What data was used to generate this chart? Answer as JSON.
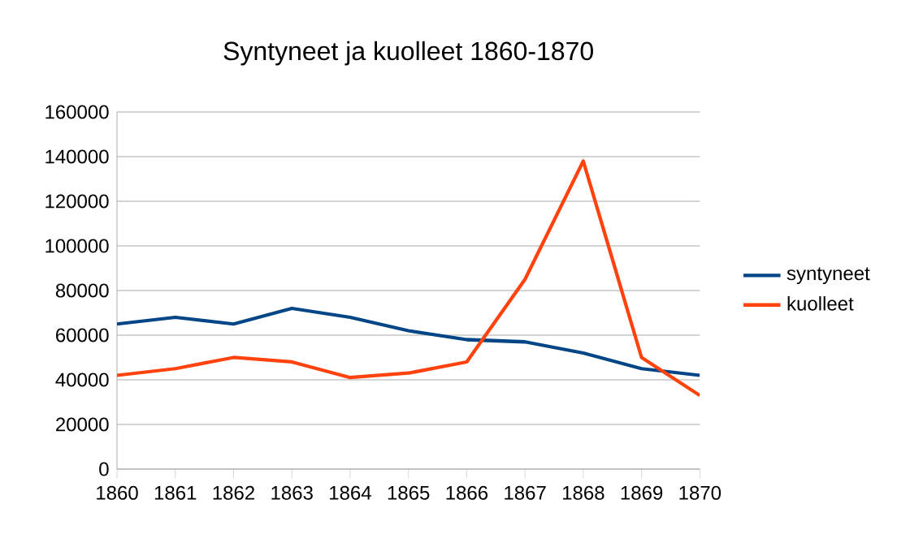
{
  "chart_data": {
    "type": "line",
    "title": "Syntyneet ja kuolleet 1860-1870",
    "x": [
      1860,
      1861,
      1862,
      1863,
      1864,
      1865,
      1866,
      1867,
      1868,
      1869,
      1870
    ],
    "series": [
      {
        "name": "syntyneet",
        "color": "#004586",
        "values": [
          65000,
          68000,
          65000,
          72000,
          68000,
          62000,
          58000,
          57000,
          52000,
          45000,
          42000
        ]
      },
      {
        "name": "kuolleet",
        "color": "#ff420e",
        "values": [
          42000,
          45000,
          50000,
          48000,
          41000,
          43000,
          48000,
          85000,
          138000,
          50000,
          33000
        ]
      }
    ],
    "xlim": [
      1860,
      1870
    ],
    "xticks": [
      1860,
      1861,
      1862,
      1863,
      1864,
      1865,
      1866,
      1867,
      1868,
      1869,
      1870
    ],
    "ylim": [
      0,
      160000
    ],
    "yticks": [
      0,
      20000,
      40000,
      60000,
      80000,
      100000,
      120000,
      140000,
      160000
    ],
    "grid": "y",
    "legend": "right",
    "marker": "none",
    "line_style": "solid"
  }
}
